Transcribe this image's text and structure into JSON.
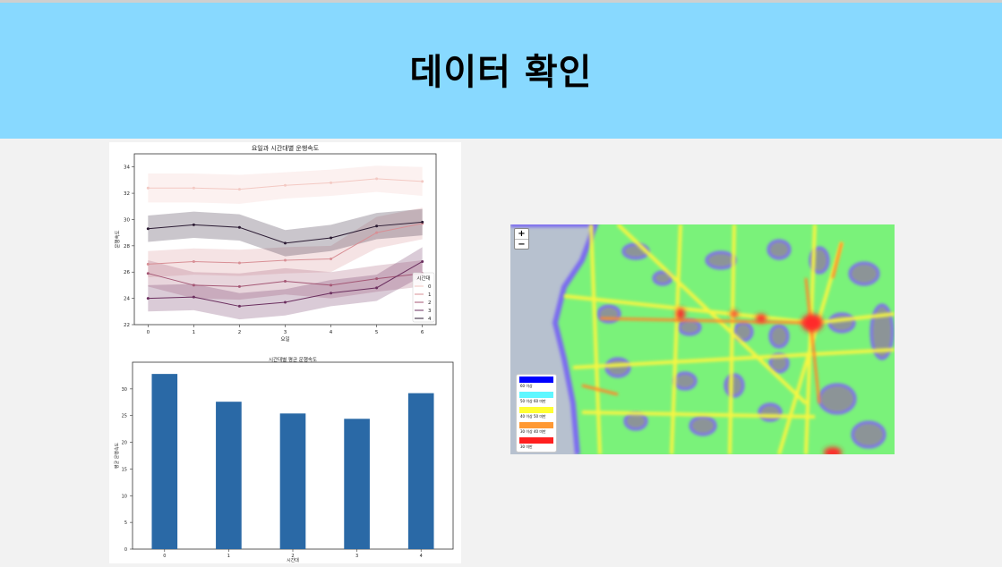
{
  "slide": {
    "title": "데이터 확인"
  },
  "map": {
    "zoom_in": "+",
    "zoom_out": "−",
    "legend": [
      {
        "label": "60 이상",
        "color": "#0000ff"
      },
      {
        "label": "50 이상 60 미만",
        "color": "#5ff7ff"
      },
      {
        "label": "40 이상 50 미만",
        "color": "#ffff33"
      },
      {
        "label": "30 이상 40 미만",
        "color": "#ff9933"
      },
      {
        "label": "30 미만",
        "color": "#ff2020"
      }
    ]
  },
  "chart_data": [
    {
      "type": "line",
      "title": "요일과 시간대별 운행속도",
      "xlabel": "요일",
      "ylabel": "운행속도",
      "x": [
        0,
        1,
        2,
        3,
        4,
        5,
        6
      ],
      "xlim": [
        -0.3,
        6.3
      ],
      "ylim": [
        22,
        35
      ],
      "yticks": [
        22,
        24,
        26,
        28,
        30,
        32,
        34
      ],
      "legend_title": "시간대",
      "legend_position": "right",
      "series": [
        {
          "name": "0",
          "color": "#f3c9c3",
          "values": [
            32.4,
            32.4,
            32.3,
            32.6,
            32.8,
            33.1,
            32.9
          ],
          "band": [
            1.1,
            1.1,
            1.1,
            1.0,
            1.0,
            1.0,
            1.1
          ]
        },
        {
          "name": "1",
          "color": "#d88f95",
          "values": [
            26.6,
            26.8,
            26.7,
            26.9,
            27.0,
            29.0,
            29.7
          ],
          "band": [
            1.0,
            1.0,
            1.0,
            1.0,
            1.0,
            1.2,
            1.2
          ]
        },
        {
          "name": "2",
          "color": "#a45775",
          "values": [
            25.9,
            25.0,
            24.9,
            25.3,
            25.0,
            25.5,
            25.9
          ],
          "band": [
            1.0,
            1.0,
            1.0,
            1.0,
            1.0,
            1.0,
            1.0
          ]
        },
        {
          "name": "3",
          "color": "#6b2f5f",
          "values": [
            24.0,
            24.1,
            23.4,
            23.7,
            24.4,
            24.8,
            26.8
          ],
          "band": [
            1.0,
            1.0,
            1.0,
            1.0,
            1.0,
            1.0,
            1.1
          ]
        },
        {
          "name": "4",
          "color": "#2b1b33",
          "values": [
            29.3,
            29.6,
            29.4,
            28.2,
            28.6,
            29.5,
            29.8
          ],
          "band": [
            1.0,
            1.0,
            1.0,
            1.0,
            1.0,
            1.0,
            1.0
          ]
        }
      ]
    },
    {
      "type": "bar",
      "title": "시간대별 평균 운행속도",
      "xlabel": "시간대",
      "ylabel": "평균 운행속도",
      "categories": [
        "0",
        "1",
        "2",
        "3",
        "4"
      ],
      "values": [
        32.8,
        27.6,
        25.4,
        24.4,
        29.2
      ],
      "ylim": [
        0,
        35
      ],
      "yticks": [
        0,
        5,
        10,
        15,
        20,
        25,
        30
      ],
      "color": "#2a69a6"
    }
  ]
}
